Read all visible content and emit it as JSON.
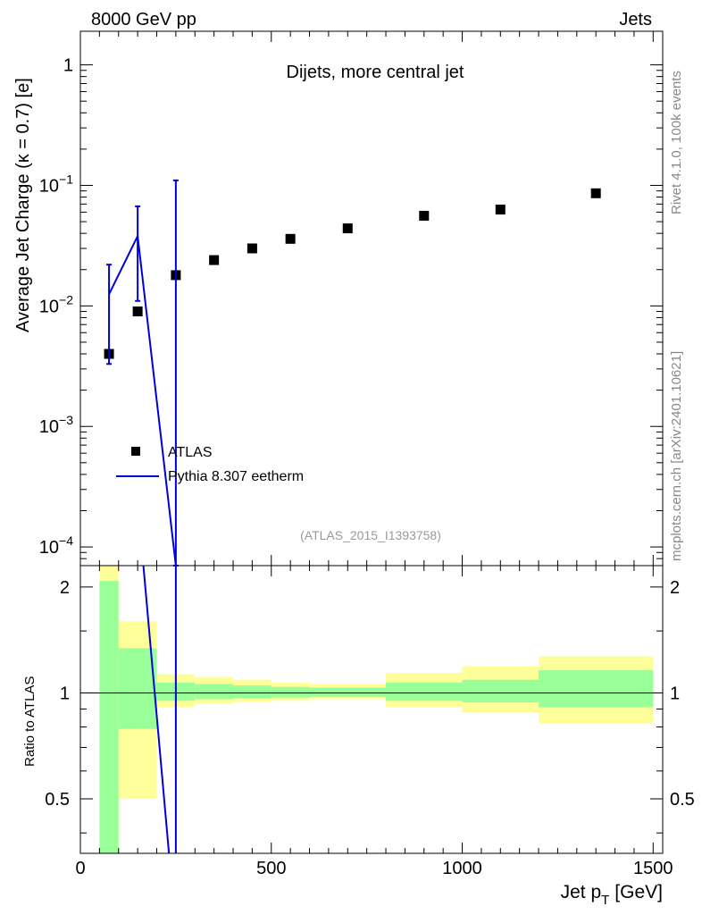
{
  "header": {
    "left": "8000 GeV pp",
    "right": "Jets"
  },
  "side_labels": {
    "rivet": "Rivet 4.1.0,  100k events",
    "mcplots": "mcplots.cern.ch [arXiv:2401.10621]"
  },
  "chart_data": [
    {
      "type": "scatter",
      "title": "Dijets, more central jet",
      "analysis_id": "(ATLAS_2015_I1393758)",
      "xlabel": "Jet p",
      "xlabel_sub": "T",
      "xlabel_unit": "[GeV]",
      "ylabel": "Average Jet Charge (κ = 0.7) [e]",
      "yscale": "log",
      "xlim": [
        0,
        1525
      ],
      "ylim": [
        7e-05,
        1.9
      ],
      "ytick_values": [
        0.0001,
        0.001,
        0.01,
        0.1,
        1
      ],
      "ytick_labels": [
        {
          "base": "10",
          "exp": "−4"
        },
        {
          "base": "10",
          "exp": "−3"
        },
        {
          "base": "10",
          "exp": "−2"
        },
        {
          "base": "10",
          "exp": "−1"
        },
        {
          "base": "1",
          "exp": ""
        }
      ],
      "legend": [
        {
          "label": "ATLAS",
          "color": "#000000",
          "marker": "square"
        },
        {
          "label": "Pythia 8.307 eetherm",
          "color": "#0000dd",
          "marker": "line"
        }
      ],
      "series": [
        {
          "name": "ATLAS",
          "color": "#000000",
          "x": [
            75,
            150,
            250,
            350,
            450,
            550,
            700,
            900,
            1100,
            1350
          ],
          "values": [
            0.004,
            0.009,
            0.018,
            0.024,
            0.03,
            0.036,
            0.044,
            0.056,
            0.063,
            0.086
          ]
        },
        {
          "name": "Pythia 8.307 eetherm",
          "color": "#0000dd",
          "x": [
            75,
            150,
            250
          ],
          "values": [
            0.0125,
            0.038,
            7e-05
          ],
          "err_low": [
            0.0033,
            0.011,
            7e-05
          ],
          "err_high": [
            0.022,
            0.067,
            0.11
          ]
        }
      ]
    },
    {
      "type": "line",
      "ylabel": "Ratio to ATLAS",
      "xlim": [
        0,
        1525
      ],
      "ylim": [
        0.35,
        2.3
      ],
      "xticks": [
        0,
        500,
        1000,
        1500
      ],
      "xtick_labels": [
        "0",
        "500",
        "1000",
        "1500"
      ],
      "yticks": [
        0.5,
        1,
        2
      ],
      "ytick_labels": [
        "0.5",
        "1",
        "2"
      ],
      "reference_line": 1,
      "bands": [
        {
          "x0": 50,
          "x1": 100,
          "inner_low": 0.35,
          "inner_high": 2.08,
          "outer_low": 0.35,
          "outer_high": 2.3
        },
        {
          "x0": 100,
          "x1": 200,
          "inner_low": 0.79,
          "inner_high": 1.34,
          "outer_low": 0.5,
          "outer_high": 1.6
        },
        {
          "x0": 200,
          "x1": 300,
          "inner_low": 0.95,
          "inner_high": 1.07,
          "outer_low": 0.91,
          "outer_high": 1.13
        },
        {
          "x0": 300,
          "x1": 400,
          "inner_low": 0.96,
          "inner_high": 1.06,
          "outer_low": 0.93,
          "outer_high": 1.11
        },
        {
          "x0": 400,
          "x1": 500,
          "inner_low": 0.965,
          "inner_high": 1.05,
          "outer_low": 0.94,
          "outer_high": 1.09
        },
        {
          "x0": 500,
          "x1": 600,
          "inner_low": 0.97,
          "inner_high": 1.04,
          "outer_low": 0.95,
          "outer_high": 1.07
        },
        {
          "x0": 600,
          "x1": 800,
          "inner_low": 0.975,
          "inner_high": 1.035,
          "outer_low": 0.96,
          "outer_high": 1.06
        },
        {
          "x0": 800,
          "x1": 1000,
          "inner_low": 0.95,
          "inner_high": 1.07,
          "outer_low": 0.91,
          "outer_high": 1.14
        },
        {
          "x0": 1000,
          "x1": 1200,
          "inner_low": 0.94,
          "inner_high": 1.09,
          "outer_low": 0.88,
          "outer_high": 1.19
        },
        {
          "x0": 1200,
          "x1": 1500,
          "inner_low": 0.91,
          "inner_high": 1.16,
          "outer_low": 0.82,
          "outer_high": 1.27
        }
      ],
      "ratio_line": {
        "name": "Pythia 8.307 eetherm",
        "color": "#0000dd",
        "x": [
          165,
          232
        ],
        "values": [
          2.3,
          0.35
        ],
        "error_bar_x": 250
      }
    }
  ]
}
